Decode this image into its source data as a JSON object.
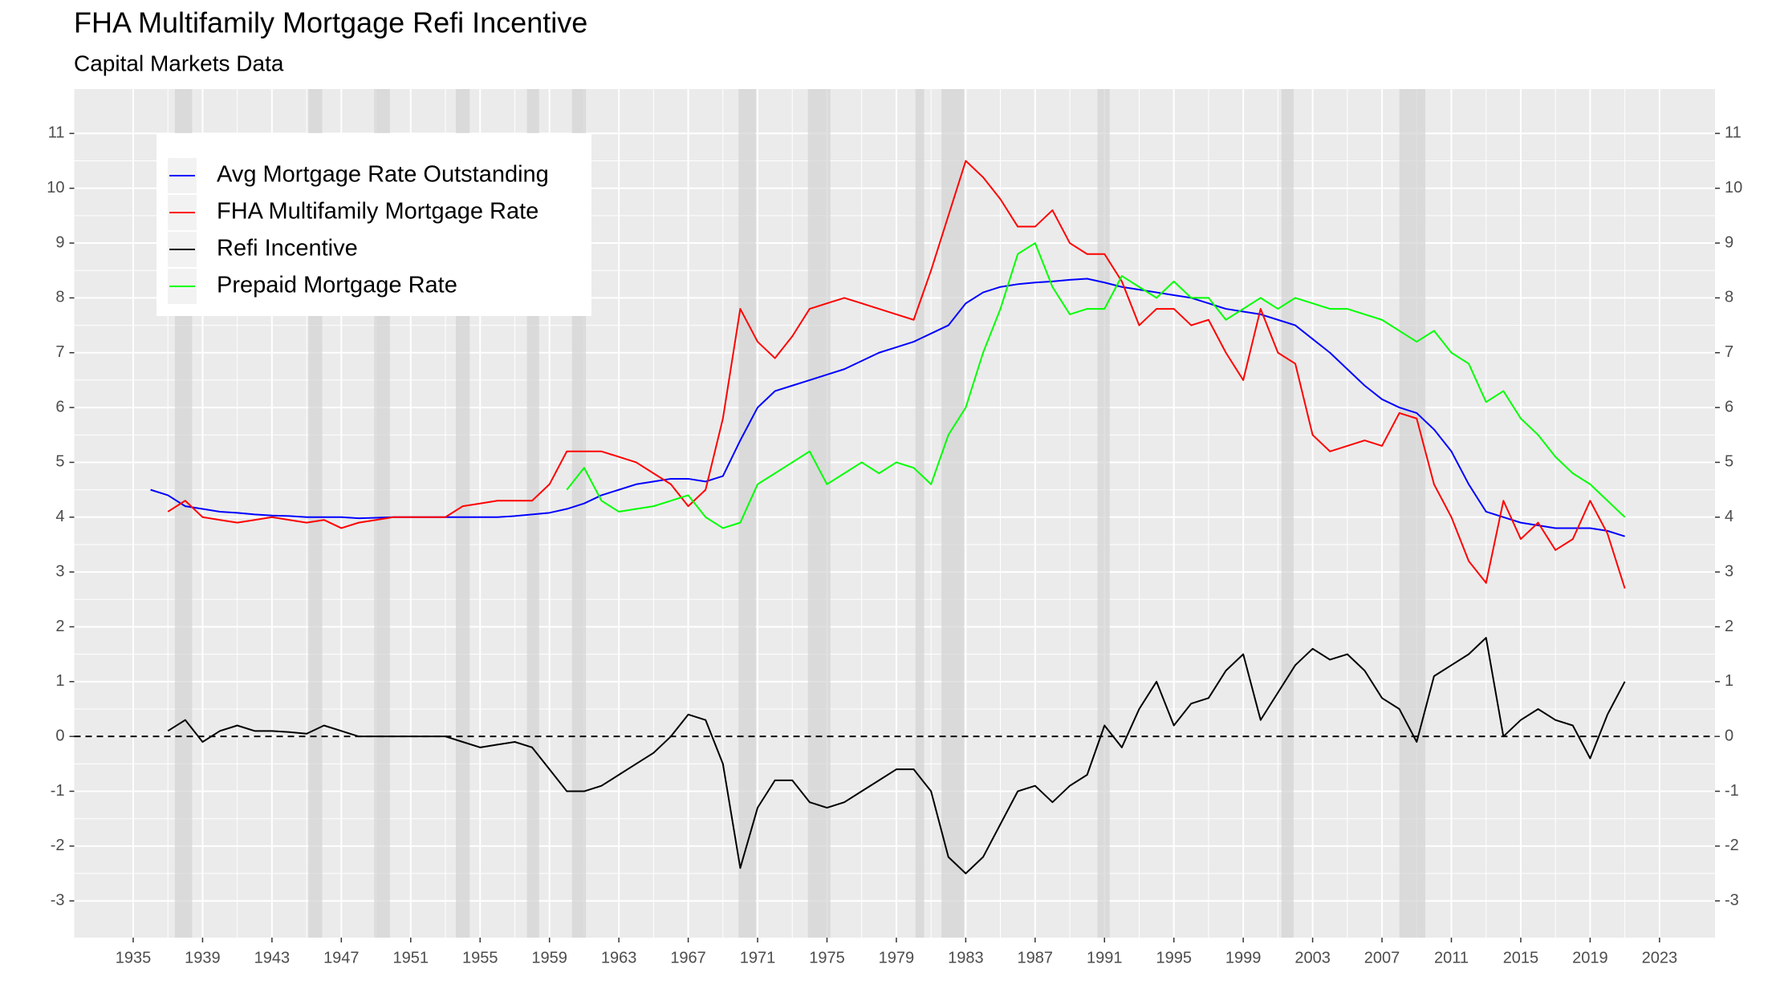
{
  "chart_data": {
    "type": "line",
    "title": "FHA Multifamily Mortgage Refi Incentive",
    "subtitle": "Capital Markets Data",
    "x": [
      1936,
      1937,
      1938,
      1939,
      1940,
      1941,
      1942,
      1943,
      1944,
      1945,
      1946,
      1947,
      1948,
      1949,
      1950,
      1951,
      1952,
      1953,
      1954,
      1955,
      1956,
      1957,
      1958,
      1959,
      1960,
      1961,
      1962,
      1963,
      1964,
      1965,
      1966,
      1967,
      1968,
      1969,
      1970,
      1971,
      1972,
      1973,
      1974,
      1975,
      1976,
      1977,
      1978,
      1979,
      1980,
      1981,
      1982,
      1983,
      1984,
      1985,
      1986,
      1987,
      1988,
      1989,
      1990,
      1991,
      1992,
      1993,
      1994,
      1995,
      1996,
      1997,
      1998,
      1999,
      2000,
      2001,
      2002,
      2003,
      2004,
      2005,
      2006,
      2007,
      2008,
      2009,
      2010,
      2011,
      2012,
      2013,
      2014,
      2015,
      2016,
      2017,
      2018,
      2019,
      2020,
      2021
    ],
    "series": [
      {
        "name": "Avg Mortgage Rate Outstanding",
        "color": "#0000ff",
        "values": [
          4.5,
          4.4,
          4.2,
          4.15,
          4.1,
          4.08,
          4.05,
          4.03,
          4.02,
          4.0,
          4.0,
          4.0,
          3.98,
          3.99,
          4.0,
          4.0,
          4.0,
          4.0,
          4.0,
          4.0,
          4.0,
          4.02,
          4.05,
          4.08,
          4.15,
          4.25,
          4.4,
          4.5,
          4.6,
          4.65,
          4.7,
          4.7,
          4.65,
          4.75,
          5.4,
          6.0,
          6.3,
          6.4,
          6.5,
          6.6,
          6.7,
          6.85,
          7.0,
          7.1,
          7.2,
          7.35,
          7.5,
          7.9,
          8.1,
          8.2,
          8.25,
          8.28,
          8.3,
          8.33,
          8.35,
          8.28,
          8.2,
          8.15,
          8.1,
          8.05,
          8.0,
          7.9,
          7.8,
          7.75,
          7.7,
          7.6,
          7.5,
          7.25,
          7.0,
          6.7,
          6.4,
          6.15,
          6.0,
          5.9,
          5.6,
          5.2,
          4.6,
          4.1,
          4.0,
          3.9,
          3.85,
          3.8,
          3.8,
          3.8,
          3.75,
          3.65
        ]
      },
      {
        "name": "FHA Multifamily Mortgage Rate",
        "color": "#ff0000",
        "values": [
          null,
          4.1,
          4.3,
          4.0,
          3.95,
          3.9,
          3.95,
          4.0,
          3.95,
          3.9,
          3.95,
          3.8,
          3.9,
          3.95,
          4.0,
          4.0,
          4.0,
          4.0,
          4.2,
          4.25,
          4.3,
          4.3,
          4.3,
          4.6,
          5.2,
          5.2,
          5.2,
          5.1,
          5.0,
          4.8,
          4.6,
          4.2,
          4.5,
          5.8,
          7.8,
          7.2,
          6.9,
          7.3,
          7.8,
          7.9,
          8.0,
          7.9,
          7.8,
          7.7,
          7.6,
          8.5,
          9.5,
          10.5,
          10.2,
          9.8,
          9.3,
          9.3,
          9.6,
          9.0,
          8.8,
          8.8,
          8.3,
          7.5,
          7.8,
          7.8,
          7.5,
          7.6,
          7.0,
          6.5,
          7.8,
          7.0,
          6.8,
          5.5,
          5.2,
          5.3,
          5.4,
          5.3,
          5.9,
          5.8,
          4.6,
          4.0,
          3.2,
          2.8,
          4.3,
          3.6,
          3.9,
          3.4,
          3.6,
          4.3,
          3.7,
          2.7
        ]
      },
      {
        "name": "Refi Incentive",
        "color": "#000000",
        "values": [
          null,
          0.1,
          0.3,
          -0.1,
          0.1,
          0.2,
          0.1,
          0.1,
          0.08,
          0.05,
          0.2,
          0.1,
          0.0,
          0.0,
          0.0,
          0.0,
          0.0,
          0.0,
          -0.1,
          -0.2,
          -0.15,
          -0.1,
          -0.2,
          -0.6,
          -1.0,
          -1.0,
          -0.9,
          -0.7,
          -0.5,
          -0.3,
          0.0,
          0.4,
          0.3,
          -0.5,
          -2.4,
          -1.3,
          -0.8,
          -0.8,
          -1.2,
          -1.3,
          -1.2,
          -1.0,
          -0.8,
          -0.6,
          -0.6,
          -1.0,
          -2.2,
          -2.5,
          -2.2,
          -1.6,
          -1.0,
          -0.9,
          -1.2,
          -0.9,
          -0.7,
          0.2,
          -0.2,
          0.5,
          1.0,
          0.2,
          0.6,
          0.7,
          1.2,
          1.5,
          0.3,
          0.8,
          1.3,
          1.6,
          1.4,
          1.5,
          1.2,
          0.7,
          0.5,
          -0.1,
          1.1,
          1.3,
          1.5,
          1.8,
          0.0,
          0.3,
          0.5,
          0.3,
          0.2,
          -0.4,
          0.4,
          1.0
        ]
      },
      {
        "name": "Prepaid Mortgage Rate",
        "color": "#00ff00",
        "values": [
          null,
          null,
          null,
          null,
          null,
          null,
          null,
          null,
          null,
          null,
          null,
          null,
          null,
          null,
          null,
          null,
          null,
          null,
          null,
          null,
          null,
          null,
          null,
          null,
          4.5,
          4.9,
          4.3,
          4.1,
          4.15,
          4.2,
          4.3,
          4.4,
          4.0,
          3.8,
          3.9,
          4.6,
          4.8,
          5.0,
          5.2,
          4.6,
          4.8,
          5.0,
          4.8,
          5.0,
          4.9,
          4.6,
          5.5,
          6.0,
          7.0,
          7.8,
          8.8,
          9.0,
          8.2,
          7.7,
          7.8,
          7.8,
          8.4,
          8.2,
          8.0,
          8.3,
          8.0,
          8.0,
          7.6,
          7.8,
          8.0,
          7.8,
          8.0,
          7.9,
          7.8,
          7.8,
          7.7,
          7.6,
          7.4,
          7.2,
          7.4,
          7.0,
          6.8,
          6.1,
          6.3,
          5.8,
          5.5,
          5.1,
          4.8,
          4.6,
          4.3,
          4.0
        ]
      }
    ],
    "shaded_periods": [
      [
        1937.4,
        1938.4
      ],
      [
        1945.1,
        1945.9
      ],
      [
        1948.9,
        1949.8
      ],
      [
        1953.6,
        1954.4
      ],
      [
        1957.7,
        1958.4
      ],
      [
        1960.3,
        1961.1
      ],
      [
        1969.9,
        1970.9
      ],
      [
        1973.9,
        1975.2
      ],
      [
        1980.1,
        1980.6
      ],
      [
        1981.6,
        1982.9
      ],
      [
        1990.6,
        1991.3
      ],
      [
        2001.2,
        2001.9
      ],
      [
        2008.0,
        2009.5
      ]
    ],
    "hline": 0,
    "xlim": [
      1931.6,
      2026.2
    ],
    "ylim": [
      -3.67,
      11.81
    ],
    "xticks": [
      1935,
      1939,
      1943,
      1947,
      1951,
      1955,
      1959,
      1963,
      1967,
      1971,
      1975,
      1979,
      1983,
      1987,
      1991,
      1995,
      1999,
      2003,
      2007,
      2011,
      2015,
      2019,
      2023
    ],
    "yticks": [
      -3,
      -2,
      -1,
      0,
      1,
      2,
      3,
      4,
      5,
      6,
      7,
      8,
      9,
      10,
      11
    ],
    "grid": true,
    "legend": "top-left",
    "right_axis": true
  }
}
